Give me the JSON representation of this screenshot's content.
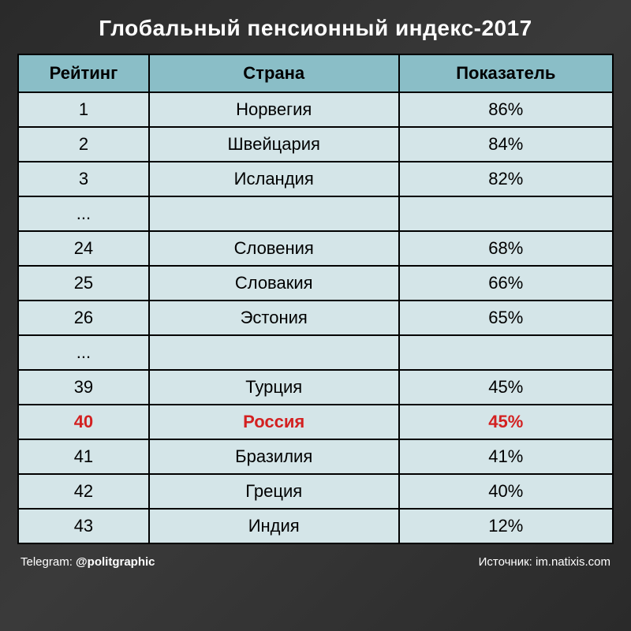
{
  "title": "Глобальный пенсионный индекс-2017",
  "table": {
    "type": "table",
    "columns": [
      "Рейтинг",
      "Страна",
      "Показатель"
    ],
    "column_widths": [
      "22%",
      "42%",
      "36%"
    ],
    "header_bg_color": "#8abec7",
    "row_bg_color": "#d4e5e8",
    "border_color": "#000000",
    "text_color": "#000000",
    "highlight_color": "#d32020",
    "header_fontsize": 22,
    "cell_fontsize": 22,
    "rows": [
      {
        "rank": "1",
        "country": "Норвегия",
        "score": "86%",
        "highlight": false
      },
      {
        "rank": "2",
        "country": "Швейцария",
        "score": "84%",
        "highlight": false
      },
      {
        "rank": "3",
        "country": "Исландия",
        "score": "82%",
        "highlight": false
      },
      {
        "rank": "...",
        "country": "",
        "score": "",
        "highlight": false,
        "ellipsis": true
      },
      {
        "rank": "24",
        "country": "Словения",
        "score": "68%",
        "highlight": false
      },
      {
        "rank": "25",
        "country": "Словакия",
        "score": "66%",
        "highlight": false
      },
      {
        "rank": "26",
        "country": "Эстония",
        "score": "65%",
        "highlight": false
      },
      {
        "rank": "...",
        "country": "",
        "score": "",
        "highlight": false,
        "ellipsis": true
      },
      {
        "rank": "39",
        "country": "Турция",
        "score": "45%",
        "highlight": false
      },
      {
        "rank": "40",
        "country": "Россия",
        "score": "45%",
        "highlight": true
      },
      {
        "rank": "41",
        "country": "Бразилия",
        "score": "41%",
        "highlight": false
      },
      {
        "rank": "42",
        "country": "Греция",
        "score": "40%",
        "highlight": false
      },
      {
        "rank": "43",
        "country": "Индия",
        "score": "12%",
        "highlight": false
      }
    ]
  },
  "footer": {
    "left_label": "Telegram:",
    "left_handle": "@politgraphic",
    "right_label": "Источник:",
    "right_value": "im.natixis.com"
  },
  "background_color": "#2e2e2e",
  "title_color": "#ffffff",
  "title_fontsize": 28,
  "footer_color": "#ffffff",
  "footer_fontsize": 15
}
